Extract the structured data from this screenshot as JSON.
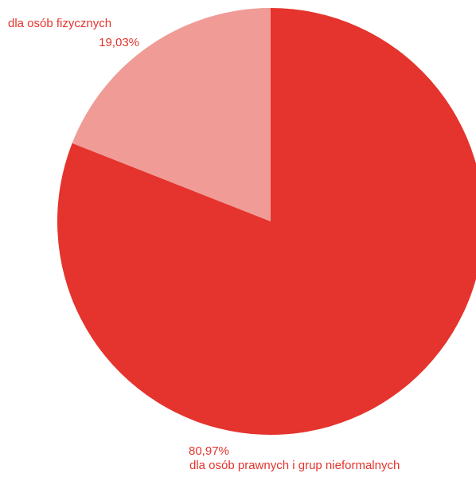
{
  "chart_data": {
    "type": "pie",
    "title": "",
    "slices": [
      {
        "name": "dla osób prawnych i grup nieformalnych",
        "value": 80.97,
        "value_label": "80,97%",
        "color": "#e4342d"
      },
      {
        "name": "dla osób fizycznych",
        "value": 19.03,
        "value_label": "19,03%",
        "color": "#f09b96"
      }
    ],
    "start_angle": "12 o'clock, clockwise",
    "legend": "none (direct labels)",
    "label_color": "#e4342d"
  }
}
